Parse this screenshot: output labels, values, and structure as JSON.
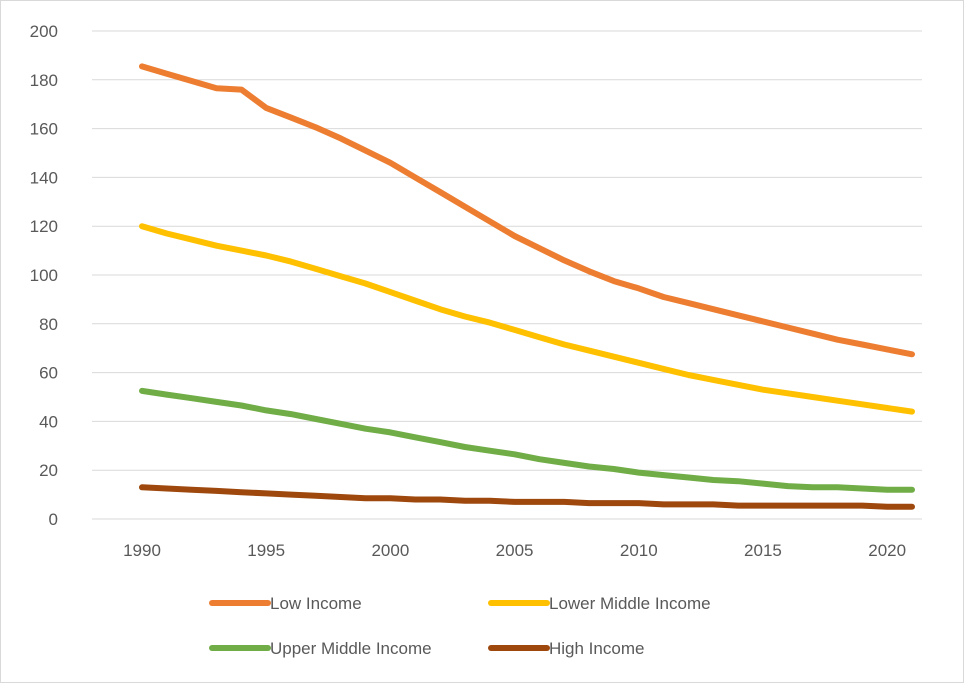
{
  "chart_data": {
    "type": "line",
    "title": "",
    "xlabel": "",
    "ylabel": "",
    "xlim": [
      1990,
      2021
    ],
    "ylim": [
      0,
      200
    ],
    "x_ticks": [
      1990,
      1995,
      2000,
      2005,
      2010,
      2015,
      2020
    ],
    "y_ticks": [
      0,
      20,
      40,
      60,
      80,
      100,
      120,
      140,
      160,
      180,
      200
    ],
    "grid": "horizontal",
    "legend_position": "bottom",
    "x": [
      1990,
      1991,
      1992,
      1993,
      1994,
      1995,
      1996,
      1997,
      1998,
      1999,
      2000,
      2001,
      2002,
      2003,
      2004,
      2005,
      2006,
      2007,
      2008,
      2009,
      2010,
      2011,
      2012,
      2013,
      2014,
      2015,
      2016,
      2017,
      2018,
      2019,
      2020,
      2021
    ],
    "series": [
      {
        "name": "Low Income",
        "color": "#ED7D31",
        "values": [
          185.5,
          182.5,
          179.5,
          176.5,
          176,
          168.5,
          164.5,
          160.5,
          156,
          151,
          146,
          140,
          134,
          128,
          122,
          116,
          111,
          106,
          101.5,
          97.5,
          94.5,
          91,
          88.5,
          86,
          83.5,
          81,
          78.5,
          76,
          73.5,
          71.5,
          69.5,
          67.5
        ]
      },
      {
        "name": "Lower Middle Income",
        "color": "#FFC000",
        "values": [
          120,
          117,
          114.5,
          112,
          110,
          108,
          105.5,
          102.5,
          99.5,
          96.5,
          93,
          89.5,
          86,
          83,
          80.5,
          77.5,
          74.5,
          71.5,
          69,
          66.5,
          64,
          61.5,
          59,
          57,
          55,
          53,
          51.5,
          50,
          48.5,
          47,
          45.5,
          44
        ]
      },
      {
        "name": "Upper Middle Income",
        "color": "#70AD47",
        "values": [
          52.5,
          51,
          49.5,
          48,
          46.5,
          44.5,
          43,
          41,
          39,
          37,
          35.5,
          33.5,
          31.5,
          29.5,
          28,
          26.5,
          24.5,
          23,
          21.5,
          20.5,
          19,
          18,
          17,
          16,
          15.5,
          14.5,
          13.5,
          13,
          13,
          12.5,
          12,
          12
        ]
      },
      {
        "name": "High Income",
        "color": "#9E480E",
        "values": [
          13,
          12.5,
          12,
          11.5,
          11,
          10.5,
          10,
          9.5,
          9,
          8.5,
          8.5,
          8,
          8,
          7.5,
          7.5,
          7,
          7,
          7,
          6.5,
          6.5,
          6.5,
          6,
          6,
          6,
          5.5,
          5.5,
          5.5,
          5.5,
          5.5,
          5.5,
          5,
          5
        ]
      }
    ]
  }
}
